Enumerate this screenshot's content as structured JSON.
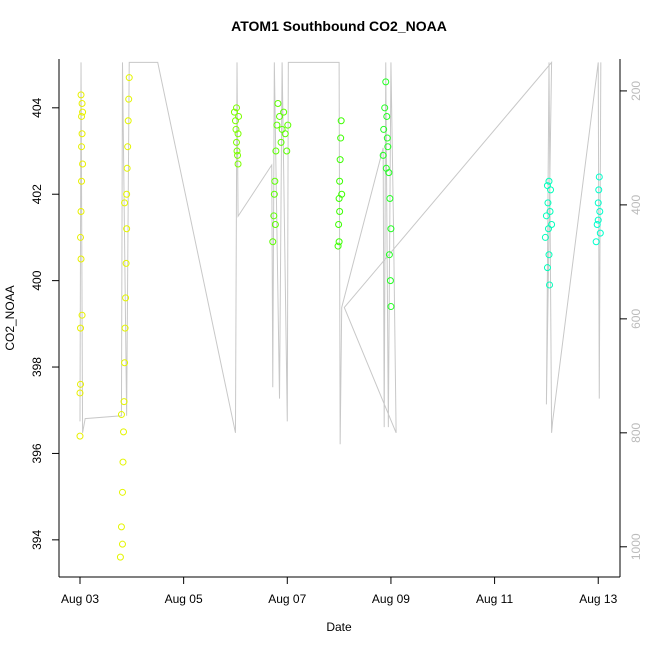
{
  "chart_data": {
    "type": "scatter",
    "title": "ATOM1 Southbound CO2_NOAA",
    "x_label": "Date",
    "y_label": "CO2_NOAA",
    "xlim": [
      2.595,
      13.42
    ],
    "ylim": [
      393.14,
      405.13
    ],
    "y2lim": [
      1053,
      144
    ],
    "xticks": [
      {
        "value": 3,
        "label": "Aug 03"
      },
      {
        "value": 5,
        "label": "Aug 05"
      },
      {
        "value": 7,
        "label": "Aug 07"
      },
      {
        "value": 9,
        "label": "Aug 09"
      },
      {
        "value": 11,
        "label": "Aug 11"
      },
      {
        "value": 13,
        "label": "Aug 13"
      }
    ],
    "yticks": [
      394,
      396,
      398,
      400,
      402,
      404
    ],
    "y2ticks": [
      200,
      400,
      600,
      800,
      1000
    ],
    "series": [
      {
        "color": "#e8f000",
        "x": [
          3.0,
          3.0,
          3.01,
          3.01,
          3.02,
          3.02,
          3.03,
          3.03,
          3.03,
          3.04,
          3.04,
          3.05,
          3.05,
          3.04,
          3.02,
          3.01
        ],
        "values": [
          396.4,
          397.4,
          398.9,
          397.6,
          400.5,
          401.6,
          402.3,
          403.1,
          403.8,
          404.1,
          403.4,
          402.7,
          403.9,
          399.2,
          404.3,
          401.0
        ]
      },
      {
        "color": "#e4f500",
        "x": [
          3.78,
          3.8,
          3.82,
          3.83,
          3.84,
          3.85,
          3.86,
          3.87,
          3.88,
          3.89,
          3.9,
          3.9,
          3.91,
          3.92,
          3.93,
          3.94,
          3.95,
          3.86,
          3.82,
          3.8
        ],
        "values": [
          393.6,
          394.3,
          395.1,
          395.8,
          396.5,
          397.2,
          398.1,
          398.9,
          399.6,
          400.4,
          401.2,
          402.0,
          402.6,
          403.1,
          403.7,
          404.2,
          404.7,
          401.8,
          393.9,
          396.9
        ]
      },
      {
        "color": "#7cff00",
        "x": [
          5.98,
          6.0,
          6.01,
          6.02,
          6.03,
          6.04,
          6.05,
          6.06,
          6.02,
          6.05
        ],
        "values": [
          403.9,
          403.7,
          403.5,
          403.2,
          403.0,
          402.9,
          403.4,
          403.8,
          404.0,
          402.7
        ]
      },
      {
        "color": "#5cff00",
        "x": [
          6.72,
          6.74,
          6.76,
          6.78,
          6.8,
          6.82,
          6.85,
          6.88,
          6.9,
          6.93,
          6.96,
          6.99,
          7.01,
          6.75,
          6.77
        ],
        "values": [
          400.9,
          401.5,
          402.3,
          403.0,
          403.6,
          404.1,
          403.8,
          403.2,
          403.5,
          403.9,
          403.4,
          403.0,
          403.6,
          402.0,
          401.3
        ]
      },
      {
        "color": "#3cff00",
        "x": [
          7.98,
          7.99,
          8.0,
          8.01,
          8.02,
          8.03,
          8.04,
          8.05,
          8.01,
          8.0
        ],
        "values": [
          400.8,
          401.3,
          401.9,
          402.3,
          402.8,
          403.3,
          403.7,
          402.0,
          401.6,
          400.9
        ]
      },
      {
        "color": "#22ff22",
        "x": [
          8.85,
          8.86,
          8.88,
          8.9,
          8.92,
          8.94,
          8.96,
          8.98,
          9.0,
          9.0,
          8.99,
          8.97,
          8.93,
          8.91
        ],
        "values": [
          402.9,
          403.5,
          404.0,
          404.6,
          403.8,
          403.1,
          402.5,
          401.9,
          401.2,
          399.4,
          400.0,
          400.6,
          403.3,
          402.6
        ]
      },
      {
        "color": "#00ffbb",
        "x": [
          11.98,
          12.0,
          12.02,
          12.03,
          12.04,
          12.05,
          12.06,
          12.07,
          12.08,
          12.1,
          12.02,
          12.05
        ],
        "values": [
          401.0,
          401.5,
          402.2,
          401.8,
          401.2,
          400.6,
          399.9,
          401.6,
          402.1,
          401.3,
          400.3,
          402.3
        ]
      },
      {
        "color": "#00ffcc",
        "x": [
          12.96,
          12.98,
          13.0,
          13.01,
          13.02,
          13.03,
          13.04,
          13.0
        ],
        "values": [
          400.9,
          401.3,
          401.8,
          402.1,
          402.4,
          401.6,
          401.1,
          401.4
        ]
      },
      {
        "type": "line",
        "axis": "y2",
        "color": "#c8c8c8",
        "x": [
          3.0,
          3.02,
          3.05,
          3.1,
          3.8,
          3.82,
          3.9,
          3.95,
          4.5,
          6.0,
          6.03,
          6.05,
          6.7,
          6.72,
          6.75,
          6.85,
          6.9,
          7.0,
          7.02,
          8.0,
          8.02,
          8.05,
          8.85,
          8.87,
          8.9,
          8.95,
          9.0,
          9.05,
          9.1,
          8.1,
          12.1,
          12.0,
          12.05,
          12.1,
          12.12,
          13.0,
          13.02,
          13.05
        ],
        "values": [
          780,
          150,
          800,
          775,
          770,
          150,
          770,
          150,
          150,
          800,
          150,
          420,
          330,
          720,
          150,
          740,
          150,
          780,
          150,
          150,
          820,
          580,
          300,
          790,
          150,
          790,
          150,
          440,
          800,
          580,
          150,
          750,
          150,
          800,
          780,
          150,
          740,
          150
        ]
      }
    ]
  }
}
